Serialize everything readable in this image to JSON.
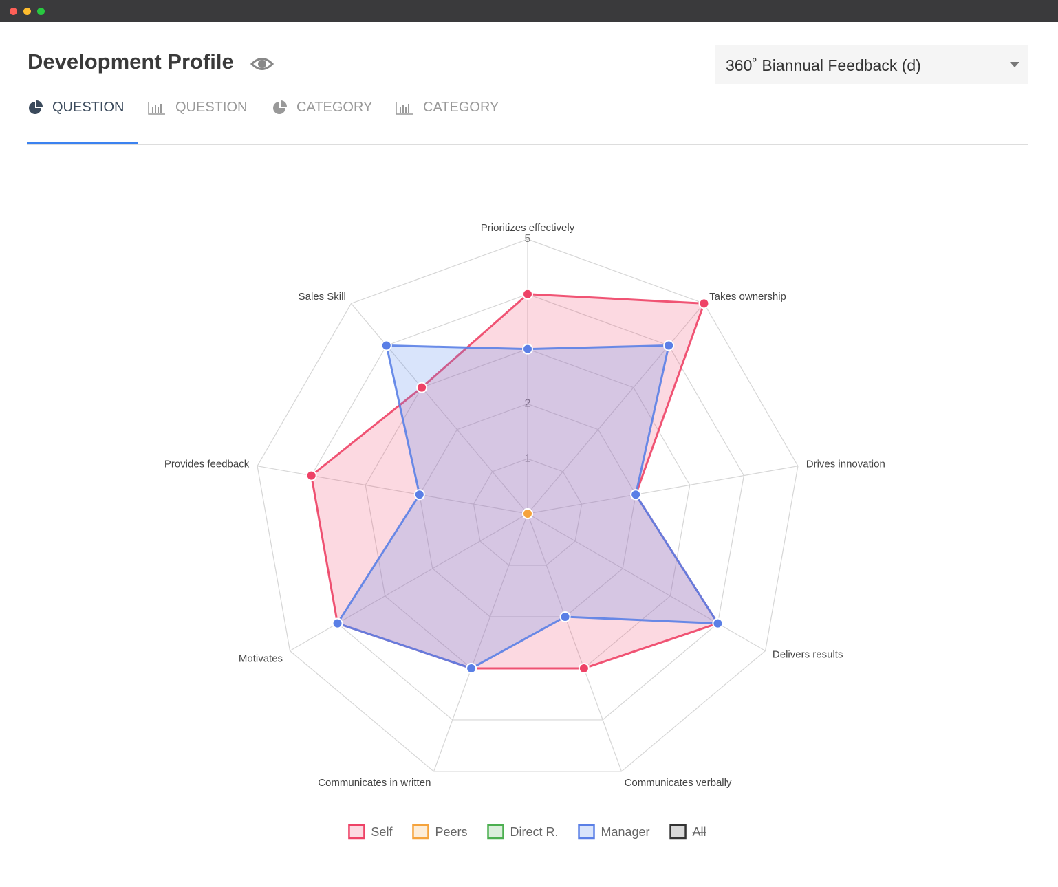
{
  "header": {
    "title": "Development Profile",
    "dropdown": "360˚ Biannual Feedback (d)"
  },
  "tabs": [
    {
      "label": "QUESTION",
      "icon": "pie",
      "active": true
    },
    {
      "label": "QUESTION",
      "icon": "bar",
      "active": false
    },
    {
      "label": "CATEGORY",
      "icon": "pie",
      "active": false
    },
    {
      "label": "CATEGORY",
      "icon": "bar",
      "active": false
    }
  ],
  "chart_data": {
    "type": "radar",
    "categories": [
      "Prioritizes effectively",
      "Takes ownership",
      "Drives innovation",
      "Delivers results",
      "Communicates verbally",
      "Communicates in written",
      "Motivates",
      "Provides feedback",
      "Sales Skill"
    ],
    "rlim": [
      0,
      5
    ],
    "rticks": [
      1,
      2,
      3,
      4,
      5
    ],
    "series": [
      {
        "name": "Self",
        "color": "#ee4266",
        "fill": "rgba(240,67,106,0.2)",
        "values": [
          4,
          5,
          2,
          4,
          3,
          3,
          4,
          4,
          3
        ]
      },
      {
        "name": "Peers",
        "color": "#f5a33c",
        "fill": "rgba(245,163,60,0.2)",
        "values": [
          0,
          0,
          0,
          0,
          0,
          0,
          0,
          0,
          0
        ]
      },
      {
        "name": "Direct R.",
        "color": "#4caf50",
        "fill": "rgba(76,175,80,0.2)",
        "values": [
          null,
          null,
          null,
          null,
          null,
          null,
          null,
          null,
          null
        ]
      },
      {
        "name": "Manager",
        "color": "#5a7fe6",
        "fill": "rgba(80,130,235,0.22)",
        "values": [
          3,
          4,
          2,
          4,
          2,
          3,
          4,
          2,
          4
        ]
      },
      {
        "name": "All",
        "color": "#333333",
        "fill": "rgba(60,60,60,0.2)",
        "hidden": true,
        "values": [
          null,
          null,
          null,
          null,
          null,
          null,
          null,
          null,
          null
        ]
      }
    ]
  }
}
